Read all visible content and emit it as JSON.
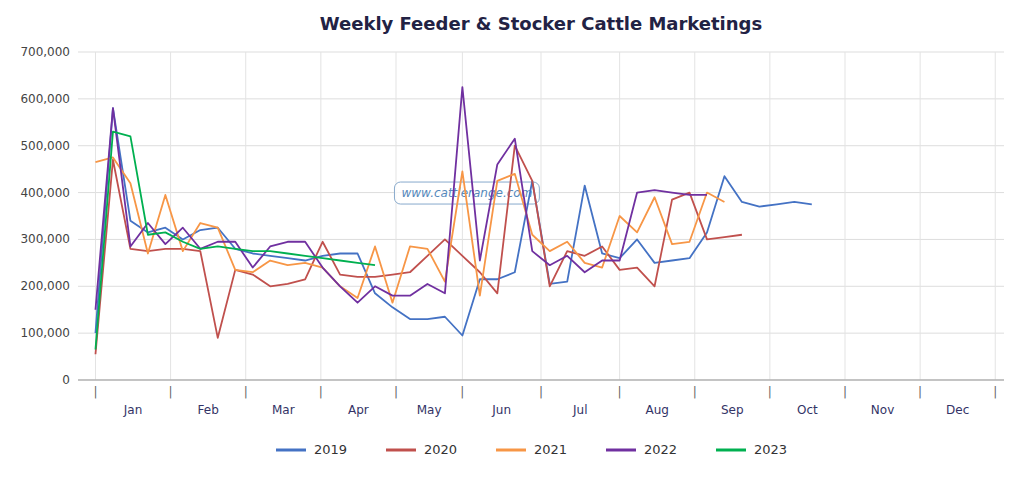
{
  "chart_data": {
    "type": "line",
    "title": "Weekly Feeder & Stocker Cattle Marketings",
    "watermark": "www.cattlerange.com",
    "x": [
      1,
      2,
      3,
      4,
      5,
      6,
      7,
      8,
      9,
      10,
      11,
      12,
      13,
      14,
      15,
      16,
      17,
      18,
      19,
      20,
      21,
      22,
      23,
      24,
      25,
      26,
      27,
      28,
      29,
      30,
      31,
      32,
      33,
      34,
      35,
      36,
      37,
      38,
      39,
      40,
      41,
      42
    ],
    "xlim": [
      0,
      53
    ],
    "xticks": [
      {
        "value": 1,
        "label": "|"
      },
      {
        "value": 5.3,
        "label": "|"
      },
      {
        "value": 9.6,
        "label": "|"
      },
      {
        "value": 13.9,
        "label": "|"
      },
      {
        "value": 18.2,
        "label": "|"
      },
      {
        "value": 22.0,
        "label": "|"
      },
      {
        "value": 26.5,
        "label": "|"
      },
      {
        "value": 31.0,
        "label": "|"
      },
      {
        "value": 35.3,
        "label": "|"
      },
      {
        "value": 39.6,
        "label": "|"
      },
      {
        "value": 43.9,
        "label": "|"
      },
      {
        "value": 48.2,
        "label": "|"
      },
      {
        "value": 52.5,
        "label": "|"
      }
    ],
    "annotations": [
      {
        "text": "Jan",
        "x": 3.15
      },
      {
        "text": "Feb",
        "x": 7.45
      },
      {
        "text": "Mar",
        "x": 11.75
      },
      {
        "text": "Apr",
        "x": 16.05
      },
      {
        "text": "May",
        "x": 20.1
      },
      {
        "text": "Jun",
        "x": 24.25
      },
      {
        "text": "Jul",
        "x": 28.75
      },
      {
        "text": "Aug",
        "x": 33.15
      },
      {
        "text": "Sep",
        "x": 37.45
      },
      {
        "text": "Oct",
        "x": 41.75
      },
      {
        "text": "Nov",
        "x": 46.05
      },
      {
        "text": "Dec",
        "x": 50.35
      }
    ],
    "ylim": [
      0,
      700000
    ],
    "yticks": [
      0,
      {
        "value": 100000,
        "label": "100,000"
      },
      {
        "value": 200000,
        "label": "200,000"
      },
      {
        "value": 300000,
        "label": "300,000"
      },
      {
        "value": 400000,
        "label": "400,000"
      },
      {
        "value": 500000,
        "label": "500,000"
      },
      {
        "value": 600000,
        "label": "600,000"
      },
      {
        "value": 700000,
        "label": "700,000"
      }
    ],
    "grid": true,
    "legend": "bottom",
    "series": [
      {
        "name": "2019",
        "color": "#4472c4",
        "values": [
          100000,
          580000,
          340000,
          315000,
          325000,
          300000,
          320000,
          325000,
          280000,
          270000,
          265000,
          260000,
          255000,
          265000,
          270000,
          270000,
          185000,
          155000,
          130000,
          130000,
          135000,
          95000,
          215000,
          215000,
          230000,
          425000,
          205000,
          210000,
          415000,
          270000,
          260000,
          300000,
          250000,
          255000,
          260000,
          315000,
          435000,
          380000,
          370000,
          375000,
          380000,
          375000
        ]
      },
      {
        "name": "2020",
        "color": "#c0504d",
        "values": [
          55000,
          470000,
          280000,
          275000,
          280000,
          280000,
          275000,
          90000,
          235000,
          225000,
          200000,
          205000,
          215000,
          295000,
          225000,
          220000,
          220000,
          225000,
          230000,
          265000,
          300000,
          265000,
          230000,
          185000,
          500000,
          425000,
          200000,
          275000,
          265000,
          285000,
          235000,
          240000,
          200000,
          385000,
          400000,
          300000,
          305000,
          310000,
          null,
          null,
          null,
          null
        ]
      },
      {
        "name": "2021",
        "color": "#f79646",
        "values": [
          465000,
          475000,
          420000,
          270000,
          395000,
          275000,
          335000,
          325000,
          235000,
          230000,
          255000,
          245000,
          250000,
          240000,
          200000,
          175000,
          285000,
          165000,
          285000,
          280000,
          210000,
          445000,
          180000,
          425000,
          440000,
          310000,
          275000,
          295000,
          250000,
          240000,
          350000,
          315000,
          390000,
          290000,
          295000,
          400000,
          380000,
          null,
          null,
          null,
          null,
          null
        ]
      },
      {
        "name": "2022",
        "color": "#7030a0",
        "values": [
          150000,
          580000,
          285000,
          335000,
          290000,
          325000,
          280000,
          295000,
          295000,
          240000,
          285000,
          295000,
          295000,
          240000,
          200000,
          165000,
          200000,
          180000,
          180000,
          205000,
          185000,
          625000,
          255000,
          460000,
          515000,
          275000,
          245000,
          265000,
          230000,
          255000,
          255000,
          400000,
          405000,
          400000,
          395000,
          395000,
          null,
          null,
          null,
          null,
          null,
          null
        ]
      },
      {
        "name": "2023",
        "color": "#00b050",
        "values": [
          65000,
          530000,
          520000,
          310000,
          315000,
          295000,
          280000,
          285000,
          280000,
          275000,
          275000,
          270000,
          265000,
          260000,
          255000,
          250000,
          245000,
          null,
          null,
          null,
          null,
          null,
          null,
          null,
          null,
          null,
          null,
          null,
          null,
          null,
          null,
          null,
          null,
          null,
          null,
          null,
          null,
          null,
          null,
          null,
          null,
          null
        ]
      }
    ]
  }
}
